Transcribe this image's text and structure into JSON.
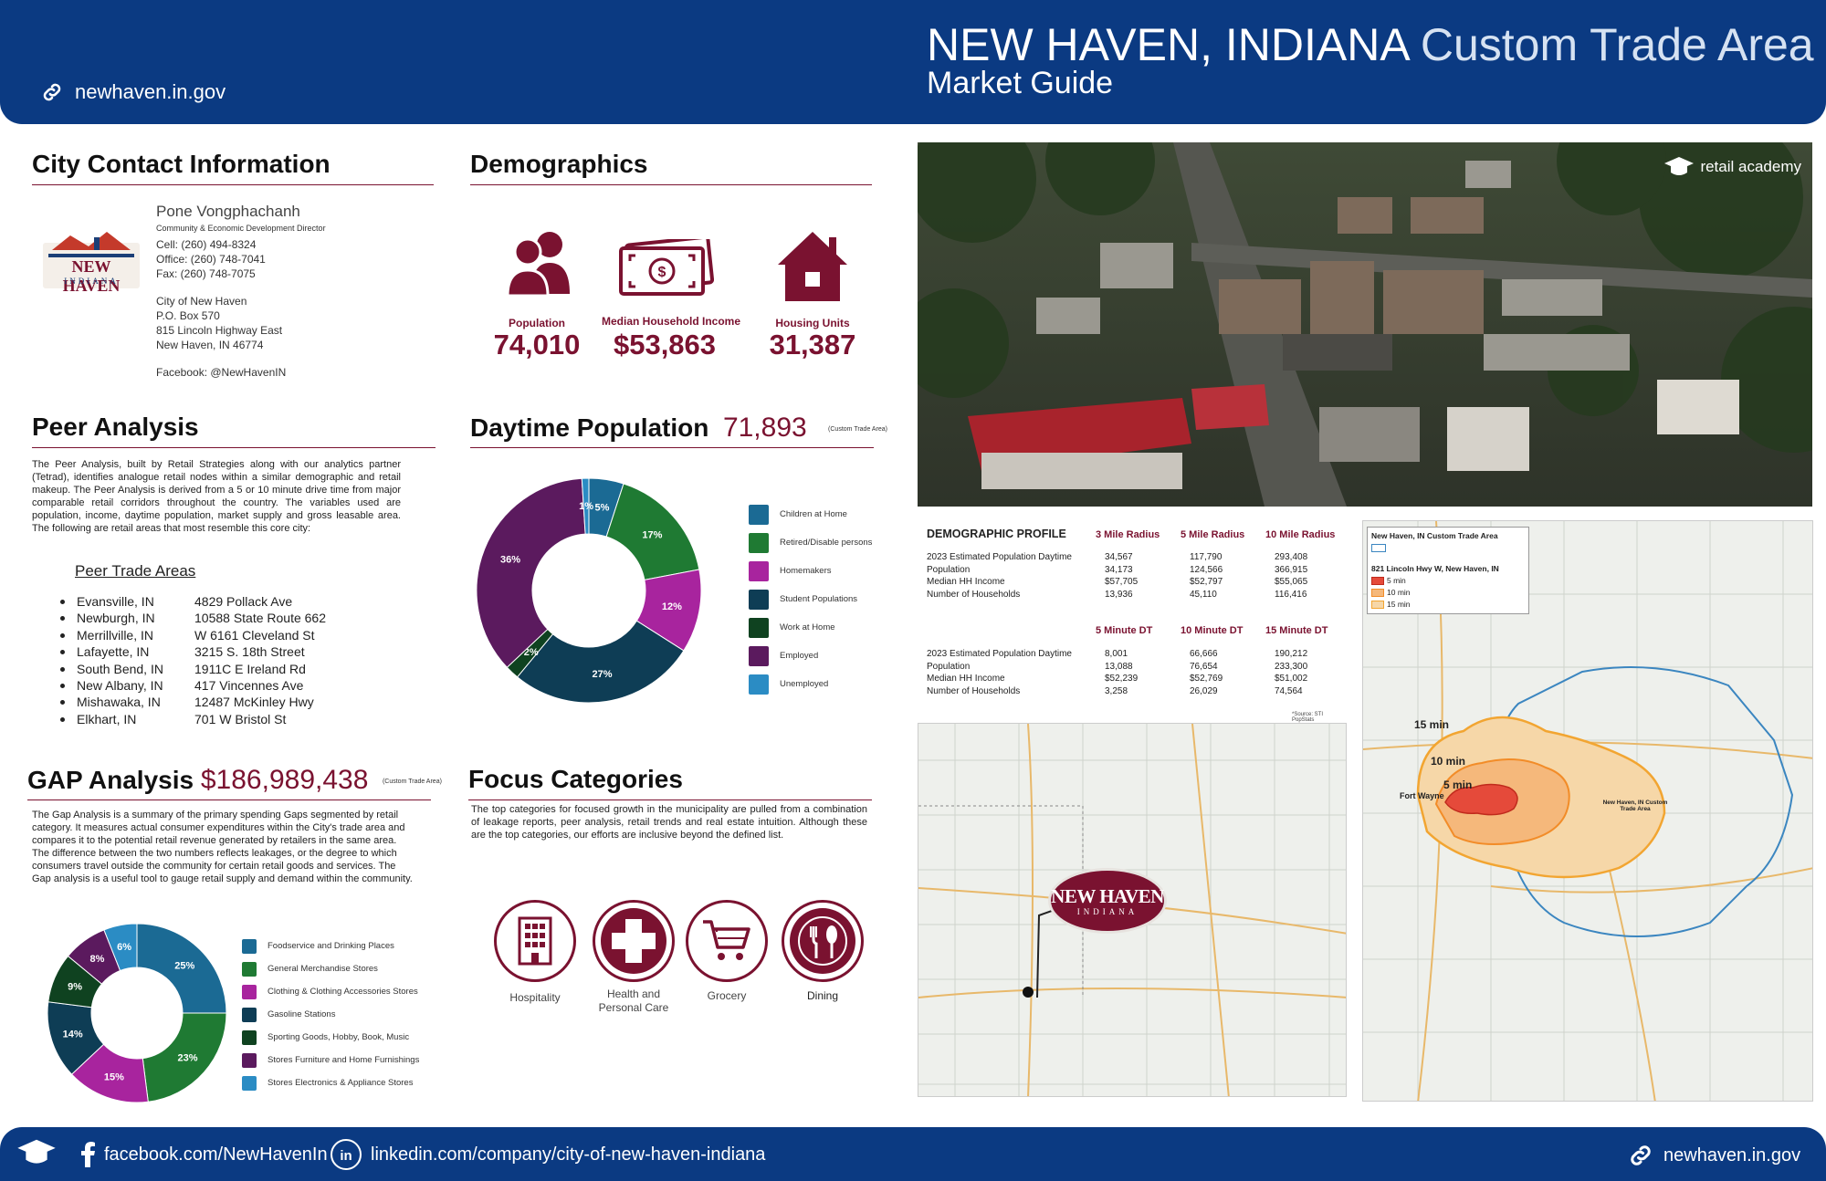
{
  "header": {
    "title_main": "NEW HAVEN, INDIANA",
    "title_light": "Custom Trade Area",
    "subtitle": "Market Guide",
    "website": "newhaven.in.gov"
  },
  "contact": {
    "title": "City Contact Information",
    "name": "Pone Vongphachanh",
    "role": "Community & Economic Development Director",
    "cell": "Cell: (260) 494-8324",
    "office": "Office: (260) 748-7041",
    "fax": "Fax: (260) 748-7075",
    "addr1": "City of New Haven",
    "addr2": "P.O. Box 570",
    "addr3": "815 Lincoln Highway East",
    "addr4": "New Haven, IN 46774",
    "facebook": "Facebook: @NewHavenIN",
    "logo_line1": "NEW HAVEN",
    "logo_line2": "INDIANA"
  },
  "demographics": {
    "title": "Demographics",
    "items": [
      {
        "label": "Population",
        "value": "74,010",
        "icon": "people-icon"
      },
      {
        "label": "Median Household Income",
        "value": "$53,863",
        "icon": "money-icon"
      },
      {
        "label": "Housing Units",
        "value": "31,387",
        "icon": "house-icon"
      }
    ]
  },
  "peer": {
    "title": "Peer Analysis",
    "body": "The Peer Analysis, built by Retail Strategies along with our analytics partner (Tetrad), identifies analogue retail nodes within a similar demographic and retail makeup. The Peer Analysis is derived from a 5 or 10 minute drive time from major comparable retail corridors throughout the country. The variables used are population, income, daytime population, market supply and gross leasable area. The following are retail areas that most resemble this core city:",
    "list_title": "Peer Trade Areas",
    "areas": [
      {
        "city": "Evansville, IN",
        "addr": "4829 Pollack Ave"
      },
      {
        "city": "Newburgh, IN",
        "addr": "10588  State  Route  662"
      },
      {
        "city": "Merrillville, IN",
        "addr": "W 6161 Cleveland St"
      },
      {
        "city": "Lafayette, IN",
        "addr": "3215 S. 18th Street"
      },
      {
        "city": "South Bend, IN",
        "addr": "1911C E Ireland Rd"
      },
      {
        "city": "New Albany, IN",
        "addr": "417 Vincennes Ave"
      },
      {
        "city": "Mishawaka, IN",
        "addr": "12487 McKinley Hwy"
      },
      {
        "city": "Elkhart, IN",
        "addr": "701 W Bristol St"
      }
    ]
  },
  "daytime": {
    "title": "Daytime Population",
    "value": "71,893",
    "note": "(Custom Trade Area)"
  },
  "gap": {
    "title": "GAP Analysis",
    "value": "$186,989,438",
    "note": "(Custom Trade Area)",
    "body": "The Gap Analysis is a summary of the primary spending Gaps segmented by retail category. It measures actual consumer expenditures within the City's trade area and compares it to the potential retail revenue generated by retailers in the same area. The difference between the two numbers reflects leakages, or the degree to which consumers travel outside the community for certain retail goods and services. The Gap analysis is a useful tool to gauge retail supply and demand within the community."
  },
  "focus": {
    "title": "Focus Categories",
    "body": "The top categories for focused growth in the municipality are pulled from a combination of leakage reports, peer analysis, retail trends and real estate intuition. Although these are the top categories, our efforts are inclusive beyond the defined list.",
    "items": [
      {
        "label": "Hospitality",
        "icon": "building-icon"
      },
      {
        "label": "Health and Personal Care",
        "icon": "medical-cross-icon"
      },
      {
        "label": "Grocery",
        "icon": "cart-icon"
      },
      {
        "label": "Dining",
        "icon": "dining-icon"
      }
    ]
  },
  "chart_data": [
    {
      "type": "pie",
      "categories": [
        "Children at Home",
        "Retired/Disable persons",
        "Homemakers",
        "Student Populations",
        "Work at Home",
        "Employed",
        "Unemployed"
      ],
      "values": [
        5,
        17,
        12,
        27,
        2,
        36,
        1
      ],
      "labels": [
        "5%",
        "17%",
        "12%",
        "27%",
        "2%",
        "36%",
        "1%"
      ],
      "colors": [
        "#1b6a94",
        "#1f7a33",
        "#a8249e",
        "#0e3d55",
        "#0f4220",
        "#5b1a5e",
        "#2b8cc4"
      ],
      "legend": "right"
    },
    {
      "type": "pie",
      "categories": [
        "Foodservice and Drinking Places",
        "General Merchandise Stores",
        "Clothing & Clothing Accessories Stores",
        "Gasoline Stations",
        "Sporting Goods, Hobby, Book, Music",
        "Stores Furniture and Home Furnishings",
        "Stores Electronics & Appliance Stores"
      ],
      "values": [
        25,
        23,
        15,
        14,
        9,
        8,
        6
      ],
      "labels": [
        "25%",
        "23%",
        "15%",
        "14%",
        "9%",
        "8%",
        "6%"
      ],
      "colors": [
        "#1b6a94",
        "#1f7a33",
        "#a8249e",
        "#0e3d55",
        "#0f4220",
        "#5b1a5e",
        "#2b8cc4"
      ],
      "legend": "right"
    }
  ],
  "profile": {
    "title": "DEMOGRAPHIC PROFILE",
    "cols1": [
      "3 Mile Radius",
      "5 Mile Radius",
      "10 Mile Radius"
    ],
    "cols2": [
      "5 Minute DT",
      "10 Minute DT",
      "15 Minute DT"
    ],
    "rows": [
      "2023 Estimated Population Daytime",
      "Population",
      "Median HH Income",
      "Number of Households"
    ],
    "table1": [
      [
        "34,567",
        "117,790",
        "293,408"
      ],
      [
        "34,173",
        "124,566",
        "366,915"
      ],
      [
        "$57,705",
        "$52,797",
        "$55,065"
      ],
      [
        "13,936",
        "45,110",
        "116,416"
      ]
    ],
    "table2": [
      [
        "8,001",
        "66,666",
        "190,212"
      ],
      [
        "13,088",
        "76,654",
        "233,300"
      ],
      [
        "$52,239",
        "$52,769",
        "$51,002"
      ],
      [
        "3,258",
        "26,029",
        "74,564"
      ]
    ],
    "source": "*Source: STI PopStats"
  },
  "photo": {
    "brand": "retail academy"
  },
  "map": {
    "title": "New Haven, IN Custom Trade Area",
    "address": "821 Lincoln Hwy W, New Haven, IN",
    "legend": [
      "5 min",
      "10 min",
      "15 min"
    ],
    "zone_labels": [
      "15 min",
      "10 min",
      "5 min"
    ],
    "area_label": "New Haven, IN Custom Trade Area",
    "city": "Fort Wayne"
  },
  "footer": {
    "facebook": "facebook.com/NewHavenIn",
    "linkedin": "linkedin.com/company/city-of-new-haven-indiana",
    "website": "newhaven.in.gov"
  }
}
